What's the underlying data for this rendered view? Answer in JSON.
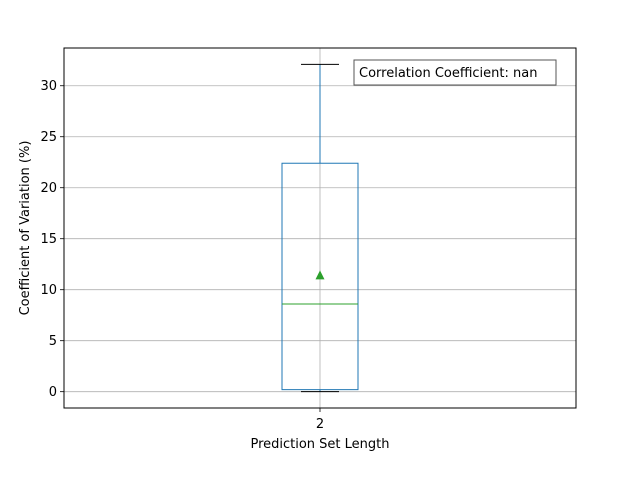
{
  "chart_data": {
    "type": "box",
    "xlabel": "Prediction Set Length",
    "ylabel": "Coefficient of Variation (%)",
    "categories": [
      "2"
    ],
    "ylim": [
      -1.6,
      33.7
    ],
    "yticks": [
      0,
      5,
      10,
      15,
      20,
      25,
      30
    ],
    "grid": true,
    "annotation": "Correlation Coefficient: nan",
    "annotation_position": "top-right",
    "boxes": [
      {
        "category": "2",
        "whisker_low": 0.0,
        "q1": 0.2,
        "median": 8.6,
        "q3": 22.4,
        "whisker_high": 32.1,
        "mean": 11.4
      }
    ],
    "colors": {
      "box": "#1f77b4",
      "median": "#2ca02c",
      "mean": "#2ca02c",
      "cap": "#000000",
      "grid": "#b0b0b0"
    }
  }
}
